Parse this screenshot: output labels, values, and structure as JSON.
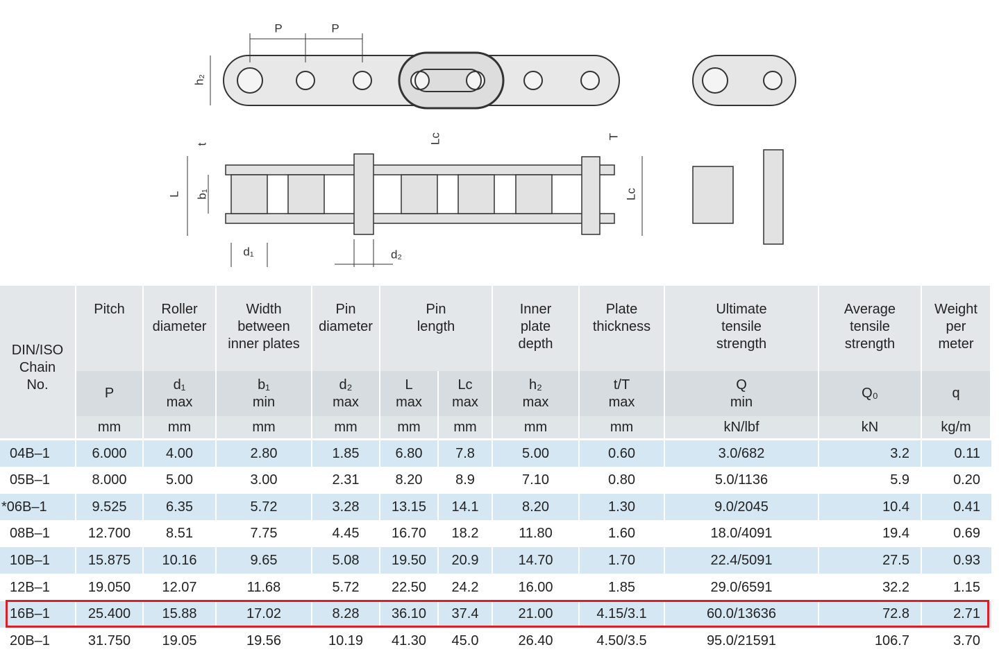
{
  "diagram": {
    "labels": {
      "pitch_left": "P",
      "pitch_right": "P",
      "plate_depth": "h₂",
      "plate_thickness_inner": "t",
      "pin_length_lc_top": "Lc",
      "plate_thickness_outer": "T",
      "pin_length": "L",
      "inner_width": "b₁",
      "pin_length_lc_side": "Lc",
      "roller_diameter": "d₁",
      "pin_diameter": "d₂"
    }
  },
  "table": {
    "first_header": [
      "DIN/ISO",
      "Chain",
      "No."
    ],
    "groups": [
      {
        "title": [
          "Pitch"
        ],
        "columns": [
          {
            "symbol": "P",
            "unit": "mm"
          }
        ]
      },
      {
        "title": [
          "Roller",
          "diameter"
        ],
        "columns": [
          {
            "symbol": "d₁",
            "limit": "max",
            "unit": "mm"
          }
        ]
      },
      {
        "title": [
          "Width",
          "between",
          "inner plates"
        ],
        "columns": [
          {
            "symbol": "b₁",
            "limit": "min",
            "unit": "mm"
          }
        ]
      },
      {
        "title": [
          "Pin",
          "diameter"
        ],
        "columns": [
          {
            "symbol": "d₂",
            "limit": "max",
            "unit": "mm"
          }
        ]
      },
      {
        "title": [
          "Pin",
          "length"
        ],
        "columns": [
          {
            "symbol": "L",
            "limit": "max",
            "unit": "mm"
          },
          {
            "symbol": "Lc",
            "limit": "max",
            "unit": "mm"
          }
        ]
      },
      {
        "title": [
          "Inner",
          "plate",
          "depth"
        ],
        "columns": [
          {
            "symbol": "h₂",
            "limit": "max",
            "unit": "mm"
          }
        ]
      },
      {
        "title": [
          "Plate",
          "thickness"
        ],
        "columns": [
          {
            "symbol": "t/T",
            "limit": "max",
            "unit": "mm"
          }
        ]
      },
      {
        "title": [
          "Ultimate",
          "tensile",
          "strength"
        ],
        "columns": [
          {
            "symbol": "Q",
            "limit": "min",
            "unit": "kN/lbf"
          }
        ]
      },
      {
        "title": [
          "Average",
          "tensile",
          "strength"
        ],
        "columns": [
          {
            "symbol": "Q₀",
            "unit": "kN"
          }
        ]
      },
      {
        "title": [
          "Weight",
          "per",
          "meter"
        ],
        "columns": [
          {
            "symbol": "q",
            "unit": "kg/m"
          }
        ]
      }
    ],
    "rows": [
      [
        "04B–1",
        "6.000",
        "4.00",
        "2.80",
        "1.85",
        "6.80",
        "7.8",
        "5.00",
        "0.60",
        "3.0/682",
        "3.2",
        "0.11"
      ],
      [
        "05B–1",
        "8.000",
        "5.00",
        "3.00",
        "2.31",
        "8.20",
        "8.9",
        "7.10",
        "0.80",
        "5.0/1136",
        "5.9",
        "0.20"
      ],
      [
        "*06B–1",
        "9.525",
        "6.35",
        "5.72",
        "3.28",
        "13.15",
        "14.1",
        "8.20",
        "1.30",
        "9.0/2045",
        "10.4",
        "0.41"
      ],
      [
        "08B–1",
        "12.700",
        "8.51",
        "7.75",
        "4.45",
        "16.70",
        "18.2",
        "11.80",
        "1.60",
        "18.0/4091",
        "19.4",
        "0.69"
      ],
      [
        "10B–1",
        "15.875",
        "10.16",
        "9.65",
        "5.08",
        "19.50",
        "20.9",
        "14.70",
        "1.70",
        "22.4/5091",
        "27.5",
        "0.93"
      ],
      [
        "12B–1",
        "19.050",
        "12.07",
        "11.68",
        "5.72",
        "22.50",
        "24.2",
        "16.00",
        "1.85",
        "29.0/6591",
        "32.2",
        "1.15"
      ],
      [
        "16B–1",
        "25.400",
        "15.88",
        "17.02",
        "8.28",
        "36.10",
        "37.4",
        "21.00",
        "4.15/3.1",
        "60.0/13636",
        "72.8",
        "2.71"
      ],
      [
        "20B–1",
        "31.750",
        "19.05",
        "19.56",
        "10.19",
        "41.30",
        "45.0",
        "26.40",
        "4.50/3.5",
        "95.0/21591",
        "106.7",
        "3.70"
      ]
    ]
  }
}
